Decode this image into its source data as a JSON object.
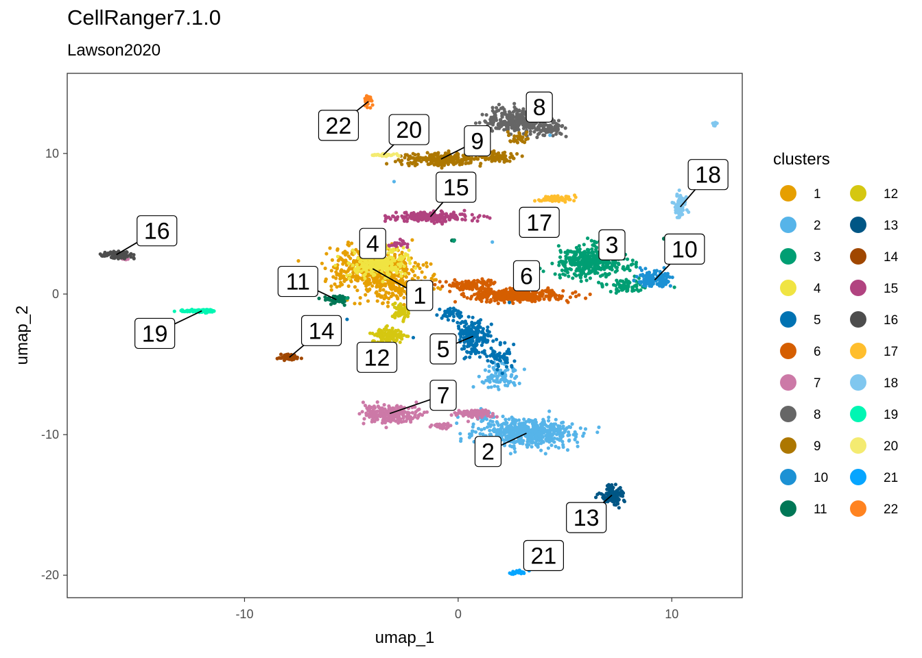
{
  "chart_data": {
    "type": "scatter",
    "title": "CellRanger7.1.0",
    "subtitle": "Lawson2020",
    "xlabel": "umap_1",
    "ylabel": "umap_2",
    "xlim": [
      -18.3,
      13.3
    ],
    "ylim": [
      -21.6,
      15.7
    ],
    "x_ticks": [
      -10,
      0,
      10
    ],
    "y_ticks": [
      -20,
      -10,
      0,
      10
    ],
    "grid": false,
    "legend": {
      "title": "clusters",
      "position": "right",
      "columns": 2
    },
    "series": [
      {
        "name": "1",
        "color": "#E69F00",
        "label_xy": [
          -1.8,
          -0.1
        ],
        "blobs": [
          [
            -4.0,
            1.8,
            2.0,
            1.6,
            520
          ],
          [
            -2.6,
            0.5,
            1.6,
            1.0,
            160
          ]
        ]
      },
      {
        "name": "2",
        "color": "#56B4E9",
        "label_xy": [
          1.4,
          -11.2
        ],
        "blobs": [
          [
            3.2,
            -9.9,
            2.3,
            1.0,
            520
          ],
          [
            1.9,
            -5.8,
            0.9,
            0.8,
            90
          ],
          [
            1.2,
            -8.6,
            0.5,
            0.4,
            30
          ]
        ]
      },
      {
        "name": "3",
        "color": "#009E73",
        "label_xy": [
          7.2,
          3.5
        ],
        "blobs": [
          [
            6.2,
            2.3,
            1.6,
            1.0,
            420
          ],
          [
            8.0,
            0.6,
            1.2,
            0.4,
            70
          ]
        ]
      },
      {
        "name": "4",
        "color": "#F0E442",
        "label_xy": [
          -4.0,
          3.6
        ],
        "blobs": [
          [
            -3.7,
            2.2,
            1.4,
            0.9,
            260
          ]
        ]
      },
      {
        "name": "5",
        "color": "#0072B2",
        "label_xy": [
          -0.7,
          -3.9
        ],
        "blobs": [
          [
            0.7,
            -3.0,
            0.8,
            1.2,
            200
          ],
          [
            -0.3,
            -1.4,
            0.6,
            0.4,
            40
          ],
          [
            2.0,
            -4.4,
            0.6,
            1.0,
            60
          ]
        ]
      },
      {
        "name": "6",
        "color": "#D55E00",
        "label_xy": [
          3.2,
          1.3
        ],
        "blobs": [
          [
            2.8,
            -0.1,
            2.1,
            0.4,
            380
          ],
          [
            0.6,
            0.6,
            1.2,
            0.4,
            110
          ]
        ]
      },
      {
        "name": "7",
        "color": "#CC79A7",
        "label_xy": [
          -0.7,
          -7.2
        ],
        "blobs": [
          [
            -3.2,
            -8.5,
            1.2,
            0.6,
            240
          ],
          [
            0.8,
            -8.5,
            0.9,
            0.3,
            90
          ],
          [
            -0.8,
            -9.4,
            0.5,
            0.2,
            30
          ],
          [
            -15.6,
            2.5,
            0.2,
            0.15,
            6
          ],
          [
            7.0,
            -14.4,
            0.2,
            0.15,
            6
          ]
        ]
      },
      {
        "name": "8",
        "color": "#666666",
        "label_xy": [
          3.8,
          13.3
        ],
        "blobs": [
          [
            2.8,
            12.3,
            1.5,
            0.9,
            340
          ],
          [
            4.3,
            11.8,
            0.6,
            0.6,
            60
          ]
        ]
      },
      {
        "name": "9",
        "color": "#AD7700",
        "label_xy": [
          0.9,
          10.9
        ],
        "blobs": [
          [
            -0.8,
            9.6,
            1.8,
            0.45,
            240
          ],
          [
            1.9,
            9.7,
            0.8,
            0.4,
            80
          ],
          [
            2.8,
            11.0,
            0.5,
            0.4,
            30
          ]
        ]
      },
      {
        "name": "10",
        "color": "#1C91D4",
        "label_xy": [
          10.6,
          3.2
        ],
        "blobs": [
          [
            9.2,
            1.0,
            0.8,
            0.6,
            140
          ]
        ]
      },
      {
        "name": "11",
        "color": "#007756",
        "label_xy": [
          -7.5,
          0.9
        ],
        "blobs": [
          [
            -5.7,
            -0.4,
            0.6,
            0.3,
            60
          ],
          [
            -0.2,
            3.8,
            0.15,
            0.1,
            6
          ],
          [
            9.6,
            3.9,
            0.1,
            0.1,
            3
          ]
        ]
      },
      {
        "name": "12",
        "color": "#D5C711",
        "label_xy": [
          -3.8,
          -4.5
        ],
        "blobs": [
          [
            -3.3,
            -3.0,
            0.7,
            0.6,
            130
          ],
          [
            -2.7,
            -1.3,
            0.4,
            0.7,
            50
          ]
        ]
      },
      {
        "name": "13",
        "color": "#005685",
        "label_xy": [
          6.0,
          -15.9
        ],
        "blobs": [
          [
            7.2,
            -14.3,
            0.5,
            0.6,
            130
          ]
        ]
      },
      {
        "name": "14",
        "color": "#A04700",
        "label_xy": [
          -6.4,
          -2.6
        ],
        "blobs": [
          [
            -7.9,
            -4.5,
            0.4,
            0.2,
            70
          ]
        ]
      },
      {
        "name": "15",
        "color": "#B14380",
        "label_xy": [
          -0.1,
          7.6
        ],
        "blobs": [
          [
            -1.3,
            5.5,
            1.9,
            0.35,
            200
          ],
          [
            -2.8,
            3.6,
            0.4,
            0.3,
            25
          ]
        ]
      },
      {
        "name": "16",
        "color": "#4D4D4D",
        "label_xy": [
          -14.1,
          4.5
        ],
        "blobs": [
          [
            -16.0,
            2.8,
            0.8,
            0.3,
            90
          ]
        ]
      },
      {
        "name": "17",
        "color": "#FFBE2D",
        "label_xy": [
          3.8,
          5.1
        ],
        "blobs": [
          [
            4.6,
            6.8,
            0.9,
            0.2,
            80
          ]
        ]
      },
      {
        "name": "18",
        "color": "#80C7EF",
        "label_xy": [
          11.7,
          8.5
        ],
        "blobs": [
          [
            10.4,
            6.2,
            0.3,
            0.8,
            70
          ],
          [
            12.0,
            12.1,
            0.15,
            0.15,
            10
          ]
        ]
      },
      {
        "name": "19",
        "color": "#00F6B3",
        "label_xy": [
          -14.2,
          -2.8
        ],
        "blobs": [
          [
            -12.0,
            -1.2,
            0.9,
            0.1,
            80
          ]
        ]
      },
      {
        "name": "20",
        "color": "#F4EB71",
        "label_xy": [
          -2.3,
          11.7
        ],
        "blobs": [
          [
            -3.5,
            9.9,
            0.6,
            0.1,
            40
          ]
        ]
      },
      {
        "name": "21",
        "color": "#06A5FF",
        "label_xy": [
          4.0,
          -18.6
        ],
        "blobs": [
          [
            2.9,
            -19.8,
            0.4,
            0.15,
            25
          ]
        ]
      },
      {
        "name": "22",
        "color": "#FF8320",
        "label_xy": [
          -5.6,
          12.0
        ],
        "blobs": [
          [
            -4.2,
            13.7,
            0.2,
            0.4,
            25
          ]
        ]
      }
    ],
    "outlier_points": [
      {
        "color": "#56B4E9",
        "xy": [
          [
            -3.0,
            8.0
          ],
          [
            1.6,
            3.7
          ],
          [
            4.3,
            11.3
          ]
        ]
      },
      {
        "color": "#0072B2",
        "xy": [
          [
            -5.2,
            -1.8
          ],
          [
            -2.1,
            -3.1
          ],
          [
            2.4,
            -0.6
          ]
        ]
      },
      {
        "color": "#009E73",
        "xy": [
          [
            -0.2,
            3.8
          ],
          [
            -5.2,
            -0.3
          ]
        ]
      }
    ]
  }
}
